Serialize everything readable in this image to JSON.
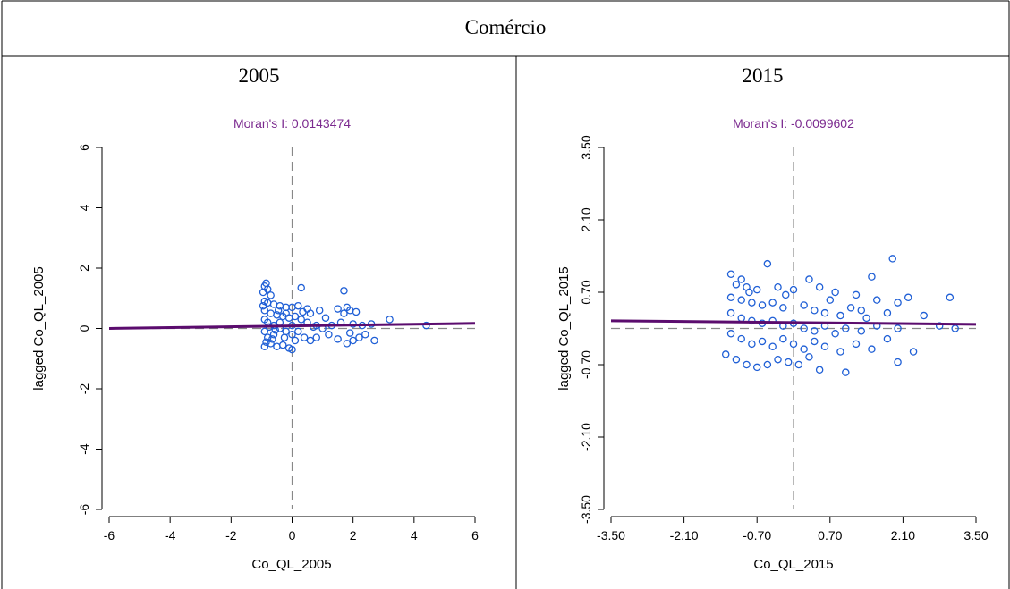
{
  "table": {
    "header": "Comércio"
  },
  "panels": [
    {
      "year_label": "2005"
    },
    {
      "year_label": "2015"
    }
  ],
  "colors": {
    "points": "#1f5fd6",
    "regression": "#5b0c6e",
    "title": "#7b2a8f",
    "reference_line": "#888888"
  },
  "chart_data": [
    {
      "type": "scatter",
      "title": "Moran's I: 0.0143474",
      "xlabel": "Co_QL_2005",
      "ylabel": "lagged Co_QL_2005",
      "xlim": [
        -6,
        6
      ],
      "ylim": [
        -6,
        6
      ],
      "xticks": [
        "-6",
        "-4",
        "-2",
        "0",
        "2",
        "4",
        "6"
      ],
      "yticks": [
        "-6",
        "-4",
        "-2",
        "0",
        "2",
        "4",
        "6"
      ],
      "reference_lines": {
        "x": 0,
        "y": 0
      },
      "regression_line": {
        "x": [
          -6,
          6
        ],
        "y": [
          0.0,
          0.17
        ]
      },
      "points": [
        [
          -0.9,
          1.4
        ],
        [
          -0.85,
          1.5
        ],
        [
          -0.8,
          1.3
        ],
        [
          -0.95,
          1.2
        ],
        [
          -0.7,
          1.1
        ],
        [
          0.3,
          1.35
        ],
        [
          1.7,
          1.25
        ],
        [
          -0.9,
          0.9
        ],
        [
          -0.8,
          0.85
        ],
        [
          -0.6,
          0.8
        ],
        [
          -0.4,
          0.75
        ],
        [
          -0.2,
          0.7
        ],
        [
          0.0,
          0.7
        ],
        [
          0.2,
          0.75
        ],
        [
          0.5,
          0.65
        ],
        [
          0.6,
          0.5
        ],
        [
          0.9,
          0.6
        ],
        [
          1.5,
          0.65
        ],
        [
          1.8,
          0.7
        ],
        [
          1.9,
          0.6
        ],
        [
          2.1,
          0.55
        ],
        [
          1.7,
          0.5
        ],
        [
          -0.9,
          0.6
        ],
        [
          -0.7,
          0.5
        ],
        [
          -0.5,
          0.45
        ],
        [
          -0.3,
          0.4
        ],
        [
          -0.1,
          0.35
        ],
        [
          0.1,
          0.4
        ],
        [
          0.3,
          0.3
        ],
        [
          0.5,
          0.2
        ],
        [
          0.8,
          0.1
        ],
        [
          1.0,
          0.0
        ],
        [
          1.3,
          0.1
        ],
        [
          1.6,
          0.2
        ],
        [
          2.0,
          0.15
        ],
        [
          2.3,
          0.1
        ],
        [
          2.6,
          0.15
        ],
        [
          3.2,
          0.3
        ],
        [
          4.4,
          0.1
        ],
        [
          -0.9,
          0.3
        ],
        [
          -0.8,
          0.2
        ],
        [
          -0.6,
          0.1
        ],
        [
          -0.4,
          0.0
        ],
        [
          -0.2,
          -0.1
        ],
        [
          0.0,
          -0.2
        ],
        [
          0.2,
          -0.1
        ],
        [
          0.4,
          -0.3
        ],
        [
          0.6,
          -0.4
        ],
        [
          0.8,
          -0.3
        ],
        [
          1.2,
          -0.2
        ],
        [
          1.5,
          -0.35
        ],
        [
          1.8,
          -0.5
        ],
        [
          2.0,
          -0.4
        ],
        [
          2.2,
          -0.3
        ],
        [
          2.4,
          -0.2
        ],
        [
          2.7,
          -0.4
        ],
        [
          1.9,
          -0.15
        ],
        [
          -0.9,
          -0.1
        ],
        [
          -0.8,
          -0.3
        ],
        [
          -0.7,
          -0.5
        ],
        [
          -0.5,
          -0.6
        ],
        [
          -0.3,
          -0.55
        ],
        [
          -0.1,
          -0.65
        ],
        [
          0.0,
          -0.7
        ],
        [
          -0.9,
          -0.6
        ],
        [
          -0.85,
          -0.45
        ],
        [
          -0.6,
          -0.2
        ],
        [
          -0.4,
          0.2
        ],
        [
          -0.2,
          0.5
        ],
        [
          0.0,
          0.1
        ],
        [
          0.1,
          -0.4
        ],
        [
          -0.75,
          0.05
        ],
        [
          -0.65,
          -0.35
        ],
        [
          -0.45,
          0.6
        ],
        [
          -0.25,
          -0.3
        ],
        [
          0.35,
          0.55
        ],
        [
          0.7,
          0.05
        ],
        [
          1.1,
          0.35
        ],
        [
          -0.95,
          0.75
        ],
        [
          -0.55,
          -0.05
        ]
      ]
    },
    {
      "type": "scatter",
      "title": "Moran's I: -0.0099602",
      "xlabel": "Co_QL_2015",
      "ylabel": "lagged Co_QL_2015",
      "xlim": [
        -3.5,
        3.5
      ],
      "ylim": [
        -3.5,
        3.5
      ],
      "xticks": [
        "-3.50",
        "-2.10",
        "-0.70",
        "0.70",
        "2.10",
        "3.50"
      ],
      "yticks": [
        "-3.50",
        "-2.10",
        "-0.70",
        "0.70",
        "2.10",
        "3.50"
      ],
      "reference_lines": {
        "x": 0,
        "y": 0
      },
      "regression_line": {
        "x": [
          -3.5,
          3.5
        ],
        "y": [
          0.15,
          0.08
        ]
      },
      "points": [
        [
          -1.2,
          1.05
        ],
        [
          -0.5,
          1.25
        ],
        [
          1.9,
          1.35
        ],
        [
          1.5,
          1.0
        ],
        [
          0.3,
          0.95
        ],
        [
          -1.1,
          0.85
        ],
        [
          -0.9,
          0.8
        ],
        [
          -0.7,
          0.75
        ],
        [
          -0.3,
          0.8
        ],
        [
          0.0,
          0.75
        ],
        [
          0.5,
          0.8
        ],
        [
          0.8,
          0.7
        ],
        [
          1.2,
          0.65
        ],
        [
          1.6,
          0.55
        ],
        [
          2.0,
          0.5
        ],
        [
          2.2,
          0.6
        ],
        [
          3.0,
          0.6
        ],
        [
          -1.2,
          0.6
        ],
        [
          -1.0,
          0.55
        ],
        [
          -0.8,
          0.5
        ],
        [
          -0.6,
          0.45
        ],
        [
          -0.4,
          0.5
        ],
        [
          -0.2,
          0.4
        ],
        [
          0.2,
          0.45
        ],
        [
          0.4,
          0.35
        ],
        [
          0.6,
          0.3
        ],
        [
          0.9,
          0.25
        ],
        [
          1.1,
          0.4
        ],
        [
          1.4,
          0.2
        ],
        [
          1.8,
          0.3
        ],
        [
          2.5,
          0.25
        ],
        [
          -1.2,
          0.3
        ],
        [
          -1.0,
          0.2
        ],
        [
          -0.8,
          0.15
        ],
        [
          -0.6,
          0.1
        ],
        [
          -0.4,
          0.15
        ],
        [
          -0.2,
          0.05
        ],
        [
          0.0,
          0.1
        ],
        [
          0.2,
          0.0
        ],
        [
          0.4,
          -0.05
        ],
        [
          0.6,
          0.05
        ],
        [
          0.8,
          -0.1
        ],
        [
          1.0,
          0.0
        ],
        [
          1.3,
          -0.05
        ],
        [
          1.6,
          0.05
        ],
        [
          2.0,
          0.0
        ],
        [
          2.8,
          0.05
        ],
        [
          3.1,
          0.0
        ],
        [
          -1.2,
          -0.1
        ],
        [
          -1.0,
          -0.2
        ],
        [
          -0.8,
          -0.3
        ],
        [
          -0.6,
          -0.25
        ],
        [
          -0.4,
          -0.35
        ],
        [
          -0.2,
          -0.2
        ],
        [
          0.0,
          -0.3
        ],
        [
          0.2,
          -0.4
        ],
        [
          0.4,
          -0.25
        ],
        [
          0.6,
          -0.35
        ],
        [
          0.9,
          -0.45
        ],
        [
          1.2,
          -0.3
        ],
        [
          1.5,
          -0.4
        ],
        [
          1.8,
          -0.2
        ],
        [
          2.3,
          -0.45
        ],
        [
          2.0,
          -0.65
        ],
        [
          -1.3,
          -0.5
        ],
        [
          -1.1,
          -0.6
        ],
        [
          -0.9,
          -0.7
        ],
        [
          -0.7,
          -0.75
        ],
        [
          -0.5,
          -0.7
        ],
        [
          -0.3,
          -0.6
        ],
        [
          -0.1,
          -0.65
        ],
        [
          0.1,
          -0.7
        ],
        [
          0.3,
          -0.55
        ],
        [
          0.5,
          -0.8
        ],
        [
          1.0,
          -0.85
        ],
        [
          -1.0,
          0.95
        ],
        [
          -0.85,
          0.7
        ],
        [
          -0.15,
          0.65
        ],
        [
          0.7,
          0.55
        ],
        [
          1.3,
          0.35
        ]
      ]
    }
  ]
}
